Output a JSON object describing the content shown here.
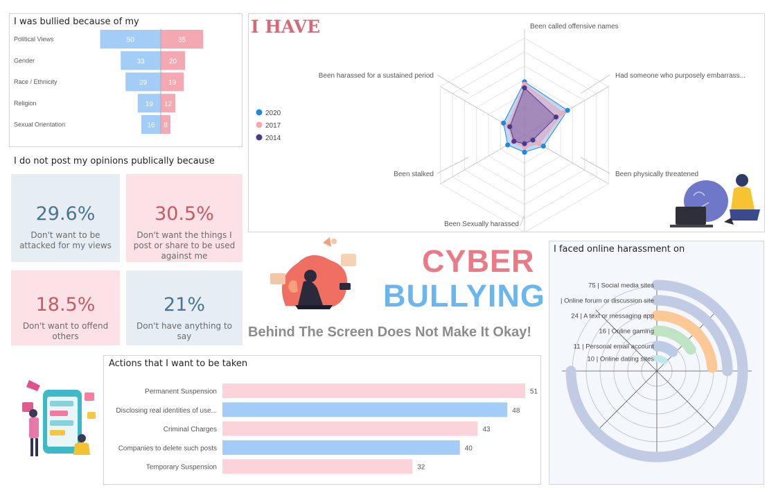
{
  "bullied": {
    "title": "I was bullied because of my",
    "chart_data": {
      "type": "bar",
      "title": "I was bullied because of my",
      "categories": [
        "Political Views",
        "Gender",
        "Race / Ethnicity",
        "Religion",
        "Sexual Orientation"
      ],
      "series": [
        {
          "values": [
            50,
            33,
            29,
            19,
            16
          ],
          "color": "#a3cdf7"
        },
        {
          "values": [
            35,
            20,
            19,
            12,
            8
          ],
          "color": "#f4a9b2"
        }
      ]
    }
  },
  "opinions": {
    "title": "I do not post my opinions publically because",
    "cards": [
      {
        "pct": "29.6%",
        "desc": "Don't want to be attacked for my views"
      },
      {
        "pct": "30.5%",
        "desc": "Don't want the things I post or share to be used against me"
      },
      {
        "pct": "18.5%",
        "desc": "Don't want to offend others"
      },
      {
        "pct": "21%",
        "desc": "Don't have anything to say"
      }
    ]
  },
  "have": {
    "title": "I HAVE",
    "chart_data": {
      "type": "radar",
      "axes": [
        "Been called offensive names",
        "Had someone who purposely embarrass...",
        "Been physically threatened",
        "Been Sexually harassed",
        "Been stalked",
        "Been harassed for a sustained period"
      ],
      "series": [
        {
          "name": "2020",
          "values": [
            44,
            41,
            18,
            14,
            16,
            20
          ],
          "color": "#1e88e5"
        },
        {
          "name": "2017",
          "values": [
            42,
            37,
            14,
            10,
            11,
            16
          ],
          "color": "#f4a9b2"
        },
        {
          "name": "2014",
          "values": [
            39,
            30,
            8,
            7,
            10,
            14
          ],
          "color": "#4b3a8c"
        }
      ],
      "rmax": 80,
      "grid": true,
      "legend": "left"
    }
  },
  "center": {
    "line1": "CYBER",
    "line2": "BULLYING",
    "tagline": "Behind The Screen Does Not Make It Okay!"
  },
  "actions": {
    "title": "Actions that I want to be taken",
    "chart_data": {
      "type": "bar",
      "title": "Actions that I want to be taken",
      "categories": [
        "Permanent Suspension",
        "Disclosing real identities of use...",
        "Criminal Charges",
        "Companies to delete such posts",
        "Temporary Suspension"
      ],
      "values": [
        51,
        48,
        43,
        40,
        32
      ],
      "colors": [
        "#fcd3da",
        "#a3cdf7",
        "#fcd3da",
        "#a3cdf7",
        "#fcd3da"
      ],
      "xlim": [
        0,
        51
      ]
    }
  },
  "harassment": {
    "title": "I faced online harassment on",
    "chart_data": {
      "type": "radial_bar",
      "title": "I faced online harassment on",
      "labels": [
        "75 | Social media sites",
        "| Online forum or discussion site",
        "24 | A text or messaging app",
        "16 | Online gaming",
        "11 | Personal email account",
        "10 | Online dating sites"
      ],
      "values": [
        75,
        25,
        24,
        16,
        11,
        10
      ],
      "colors": [
        "#c2cbe4",
        "#c2cbe4",
        "#fbc896",
        "#bfe3c3",
        "#bccbe6",
        "#bfe8e8"
      ],
      "max": 100
    }
  }
}
